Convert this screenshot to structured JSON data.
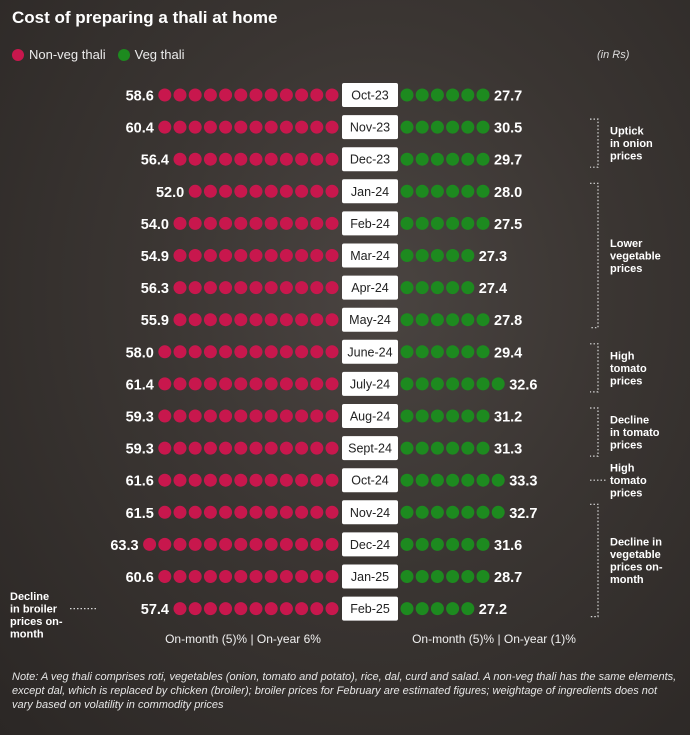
{
  "title": "Cost of preparing a thali at home",
  "unit": "(in Rs)",
  "colors": {
    "nonveg": "#c8174d",
    "veg": "#1d8a1f"
  },
  "chart_data": {
    "type": "bar",
    "title": "Cost of preparing a thali at home",
    "unit": "(in Rs)",
    "categories": [
      "Oct-23",
      "Nov-23",
      "Dec-23",
      "Jan-24",
      "Feb-24",
      "Mar-24",
      "Apr-24",
      "May-24",
      "June-24",
      "July-24",
      "Aug-24",
      "Sept-24",
      "Oct-24",
      "Nov-24",
      "Dec-24",
      "Jan-25",
      "Feb-25"
    ],
    "series": [
      {
        "name": "Non-veg thali",
        "values": [
          58.6,
          60.4,
          56.4,
          52.0,
          54.0,
          54.9,
          56.3,
          55.9,
          58.0,
          61.4,
          59.3,
          59.3,
          61.6,
          61.5,
          63.3,
          60.6,
          57.4
        ],
        "labels": [
          "58.6",
          "60.4",
          "56.4",
          "52.0",
          "54.0",
          "54.9",
          "56.3",
          "55.9",
          "58.0",
          "61.4",
          "59.3",
          "59.3",
          "61.6",
          "61.5",
          "63.3",
          "60.6",
          "57.4"
        ]
      },
      {
        "name": "Veg thali",
        "values": [
          27.7,
          30.5,
          29.7,
          28.0,
          27.5,
          27.3,
          27.4,
          27.8,
          29.4,
          32.6,
          31.2,
          31.3,
          33.3,
          32.7,
          31.6,
          28.7,
          27.2
        ],
        "labels": [
          "27.7",
          "30.5",
          "29.7",
          "28.0",
          "27.5",
          "27.3",
          "27.4",
          "27.8",
          "29.4",
          "32.6",
          "31.2",
          "31.3",
          "33.3",
          "32.7",
          "31.6",
          "28.7",
          "27.2"
        ]
      }
    ],
    "change_notes": {
      "nonveg": "On-month (5)% | On-year 6%",
      "veg": "On-month (5)% | On-year (1)%"
    },
    "annotations": [
      {
        "text": [
          "Uptick",
          "in onion",
          "prices"
        ],
        "from": 1,
        "to": 2
      },
      {
        "text": [
          "Lower",
          "vegetable",
          "prices"
        ],
        "from": 3,
        "to": 7
      },
      {
        "text": [
          "High",
          "tomato",
          "prices"
        ],
        "from": 8,
        "to": 9
      },
      {
        "text": [
          "Decline",
          "in tomato",
          "prices"
        ],
        "from": 10,
        "to": 11
      },
      {
        "text": [
          "High",
          "tomato",
          "prices"
        ],
        "from": 12,
        "to": 12
      },
      {
        "text": [
          "Decline in",
          "vegetable",
          "prices on-",
          "month"
        ],
        "from": 13,
        "to": 16
      }
    ],
    "left_annotation": {
      "text": [
        "Decline",
        "in broiler",
        "prices on-",
        "month"
      ],
      "row": 16
    }
  },
  "note": "Note: A veg thali comprises roti, vegetables (onion, tomato and potato), rice, dal, curd and salad. A non-veg thali has the same elements, except dal, which is replaced by chicken (broiler); broiler prices for February are estimated figures; weightage of ingredients does not vary based on volatility in commodity prices"
}
